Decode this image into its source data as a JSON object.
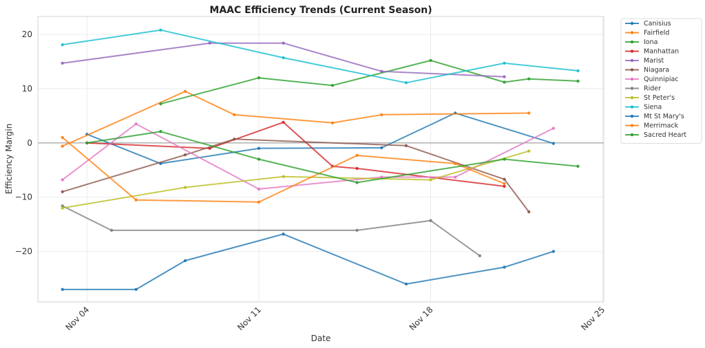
{
  "chart_data": {
    "type": "line",
    "title": "MAAC Efficiency Trends (Current Season)",
    "xlabel": "Date",
    "ylabel": "Efficiency Margin",
    "x_tick_labels": [
      "Nov 04",
      "Nov 11",
      "Nov 18",
      "Nov 25"
    ],
    "x_ticks_day": [
      4,
      11,
      18,
      25
    ],
    "x_range_day": [
      2.0,
      25.05
    ],
    "y_ticks": [
      -20,
      -10,
      0,
      10,
      20
    ],
    "y_tick_labels": [
      "−20",
      "−10",
      "0",
      "10",
      "20"
    ],
    "ylim": [
      -29.3,
      23.3
    ],
    "grid": true,
    "zero_line": true,
    "legend_position": "outside-top-right",
    "series": [
      {
        "name": "Canisius",
        "color": "#1f77b4",
        "x_day": [
          4,
          7,
          11,
          16,
          19,
          23
        ],
        "values": [
          1.6,
          -3.8,
          -1.0,
          -0.9,
          5.5,
          -0.1
        ]
      },
      {
        "name": "Fairfield",
        "color": "#ff7f0e",
        "x_day": [
          3,
          8,
          10,
          14,
          16,
          22
        ],
        "values": [
          -0.6,
          9.5,
          5.2,
          3.7,
          5.2,
          5.5
        ]
      },
      {
        "name": "Iona",
        "color": "#2ca02c",
        "x_day": [
          7,
          11,
          14,
          18,
          21,
          22,
          24
        ],
        "values": [
          7.2,
          12.0,
          10.6,
          15.2,
          11.2,
          11.8,
          11.4
        ]
      },
      {
        "name": "Manhattan",
        "color": "#d62728",
        "x_day": [
          4,
          9,
          12,
          14,
          15,
          21
        ],
        "values": [
          0.0,
          -1.0,
          3.8,
          -4.3,
          -4.7,
          -8.0
        ]
      },
      {
        "name": "Marist",
        "color": "#9467bd",
        "x_day": [
          3,
          9,
          12,
          16,
          21
        ],
        "values": [
          14.7,
          18.4,
          18.4,
          13.2,
          12.2
        ]
      },
      {
        "name": "Niagara",
        "color": "#8c564b",
        "x_day": [
          3,
          8,
          10,
          17,
          21,
          22
        ],
        "values": [
          -9.0,
          -2.2,
          0.7,
          -0.5,
          -6.7,
          -12.7
        ]
      },
      {
        "name": "Quinnipiac",
        "color": "#e377c2",
        "x_day": [
          3,
          6,
          11,
          16,
          19,
          23
        ],
        "values": [
          -6.8,
          3.5,
          -8.5,
          -6.3,
          -6.3,
          2.7
        ]
      },
      {
        "name": "Rider",
        "color": "#7f7f7f",
        "x_day": [
          3,
          5,
          15,
          18,
          20
        ],
        "values": [
          -11.6,
          -16.1,
          -16.1,
          -14.3,
          -20.8
        ]
      },
      {
        "name": "St Peter's",
        "color": "#bcbd22",
        "x_day": [
          3,
          8,
          12,
          18,
          22
        ],
        "values": [
          -12.0,
          -8.2,
          -6.2,
          -6.8,
          -1.5
        ]
      },
      {
        "name": "Siena",
        "color": "#17becf",
        "x_day": [
          3,
          7,
          12,
          17,
          21,
          24
        ],
        "values": [
          18.1,
          20.8,
          15.7,
          11.1,
          14.7,
          13.3
        ]
      },
      {
        "name": "Mt St Mary's",
        "color": "#1f77b4",
        "x_day": [
          3,
          6,
          8,
          12,
          17,
          21,
          23
        ],
        "values": [
          -27.0,
          -27.0,
          -21.7,
          -16.8,
          -26.0,
          -22.9,
          -20.0
        ]
      },
      {
        "name": "Merrimack",
        "color": "#ff7f0e",
        "x_day": [
          3,
          6,
          11,
          15,
          19,
          21
        ],
        "values": [
          1.0,
          -10.5,
          -10.9,
          -2.3,
          -3.8,
          -7.5
        ]
      },
      {
        "name": "Sacred Heart",
        "color": "#2ca02c",
        "x_day": [
          4,
          7,
          11,
          15,
          21,
          24
        ],
        "values": [
          0.0,
          2.1,
          -3.0,
          -7.3,
          -3.0,
          -4.3
        ]
      }
    ]
  }
}
